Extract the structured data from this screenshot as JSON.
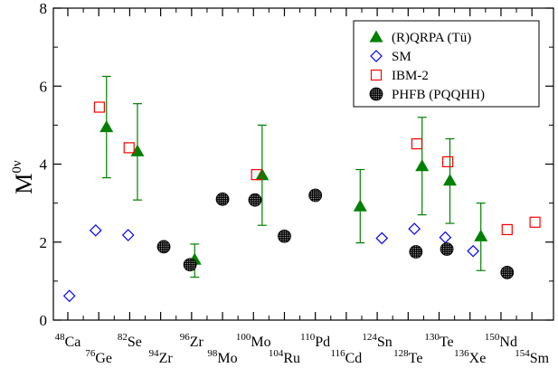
{
  "chart_data": {
    "type": "scatter",
    "title": "",
    "xlabel": "",
    "ylabel": "M",
    "ylabel_superscript": "0ν",
    "ylim": [
      0,
      8
    ],
    "yticks": [
      0,
      2,
      4,
      6,
      8
    ],
    "x_range": [
      0,
      15.2
    ],
    "isotopes": [
      {
        "mass": "48",
        "element": "Ca",
        "x": 0.0
      },
      {
        "mass": "76",
        "element": "Ge",
        "x": 1.0
      },
      {
        "mass": "82",
        "element": "Se",
        "x": 2.0
      },
      {
        "mass": "94",
        "element": "Zr",
        "x": 3.0
      },
      {
        "mass": "96",
        "element": "Zr",
        "x": 4.0
      },
      {
        "mass": "98",
        "element": "Mo",
        "x": 5.0
      },
      {
        "mass": "100",
        "element": "Mo",
        "x": 6.0
      },
      {
        "mass": "104",
        "element": "Ru",
        "x": 7.0
      },
      {
        "mass": "110",
        "element": "Pd",
        "x": 8.0
      },
      {
        "mass": "116",
        "element": "Cd",
        "x": 9.0
      },
      {
        "mass": "124",
        "element": "Sn",
        "x": 10.0
      },
      {
        "mass": "128",
        "element": "Te",
        "x": 11.0
      },
      {
        "mass": "130",
        "element": "Te",
        "x": 12.0
      },
      {
        "mass": "136",
        "element": "Xe",
        "x": 13.0
      },
      {
        "mass": "150",
        "element": "Nd",
        "x": 14.0
      },
      {
        "mass": "154",
        "element": "Sm",
        "x": 15.0
      }
    ],
    "series": [
      {
        "name": "(R)QRPA (Tü)",
        "marker": "triangle",
        "color": "#008000",
        "points": [
          {
            "x": 1.25,
            "y": 4.95,
            "ylow": 3.65,
            "yhigh": 6.25
          },
          {
            "x": 2.25,
            "y": 4.33,
            "ylow": 3.08,
            "yhigh": 5.55
          },
          {
            "x": 4.1,
            "y": 1.55,
            "ylow": 1.1,
            "yhigh": 1.95
          },
          {
            "x": 6.28,
            "y": 3.72,
            "ylow": 2.43,
            "yhigh": 5.0
          },
          {
            "x": 9.45,
            "y": 2.92,
            "ylow": 1.98,
            "yhigh": 3.86
          },
          {
            "x": 11.45,
            "y": 3.95,
            "ylow": 2.7,
            "yhigh": 5.2
          },
          {
            "x": 12.35,
            "y": 3.58,
            "ylow": 2.48,
            "yhigh": 4.65
          },
          {
            "x": 13.35,
            "y": 2.15,
            "ylow": 1.27,
            "yhigh": 3.0
          }
        ]
      },
      {
        "name": "SM",
        "marker": "diamond",
        "color": "#0000ff",
        "points": [
          {
            "x": 0.05,
            "y": 0.62
          },
          {
            "x": 0.9,
            "y": 2.3
          },
          {
            "x": 1.95,
            "y": 2.18
          },
          {
            "x": 10.15,
            "y": 2.1
          },
          {
            "x": 11.2,
            "y": 2.34
          },
          {
            "x": 12.2,
            "y": 2.12
          },
          {
            "x": 13.1,
            "y": 1.77
          }
        ]
      },
      {
        "name": "IBM-2",
        "marker": "square",
        "color": "#ff0000",
        "points": [
          {
            "x": 1.02,
            "y": 5.46
          },
          {
            "x": 1.98,
            "y": 4.42
          },
          {
            "x": 6.1,
            "y": 3.73
          },
          {
            "x": 11.28,
            "y": 4.52
          },
          {
            "x": 12.28,
            "y": 4.06
          },
          {
            "x": 14.2,
            "y": 2.32
          },
          {
            "x": 15.1,
            "y": 2.51
          }
        ]
      },
      {
        "name": "PHFB (PQQHH)",
        "marker": "dotted-circle",
        "color": "#000000",
        "points": [
          {
            "x": 3.1,
            "y": 1.88
          },
          {
            "x": 3.95,
            "y": 1.42
          },
          {
            "x": 5.0,
            "y": 3.1
          },
          {
            "x": 6.05,
            "y": 3.08
          },
          {
            "x": 7.0,
            "y": 2.15
          },
          {
            "x": 8.0,
            "y": 3.2
          },
          {
            "x": 11.25,
            "y": 1.75
          },
          {
            "x": 12.25,
            "y": 1.82
          },
          {
            "x": 14.2,
            "y": 1.22
          }
        ]
      }
    ],
    "legend": {
      "placement": "top-right",
      "entries": [
        {
          "label": "(R)QRPA (Tü)",
          "marker": "triangle",
          "color": "#008000"
        },
        {
          "label": "SM",
          "marker": "diamond",
          "color": "#0000ff"
        },
        {
          "label": "IBM-2",
          "marker": "square",
          "color": "#ff0000"
        },
        {
          "label": "PHFB (PQQHH)",
          "marker": "dotted-circle",
          "color": "#000000"
        }
      ]
    }
  }
}
